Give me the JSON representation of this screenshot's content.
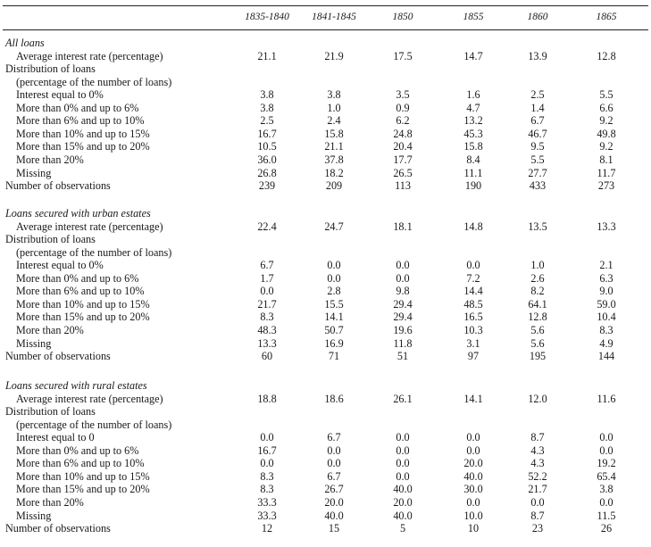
{
  "table": {
    "columns": [
      "1835-1840",
      "1841-1845",
      "1850",
      "1855",
      "1860",
      "1865"
    ],
    "sections": [
      {
        "title": "All loans",
        "rows": [
          {
            "label": "Average interest rate (percentage)",
            "indent": 1,
            "values": [
              "21.1",
              "21.9",
              "17.5",
              "14.7",
              "13.9",
              "12.8"
            ]
          },
          {
            "label": "Distribution of loans",
            "indent": 0,
            "values": []
          },
          {
            "label": "(percentage of the number of loans)",
            "indent": 1,
            "values": []
          },
          {
            "label": "Interest equal to 0%",
            "indent": 1,
            "values": [
              "3.8",
              "3.8",
              "3.5",
              "1.6",
              "2.5",
              "5.5"
            ]
          },
          {
            "label": "More than 0% and up to 6%",
            "indent": 1,
            "values": [
              "3.8",
              "1.0",
              "0.9",
              "4.7",
              "1.4",
              "6.6"
            ]
          },
          {
            "label": "More than 6% and up to 10%",
            "indent": 1,
            "values": [
              "2.5",
              "2.4",
              "6.2",
              "13.2",
              "6.7",
              "9.2"
            ]
          },
          {
            "label": "More than 10% and up to 15%",
            "indent": 1,
            "values": [
              "16.7",
              "15.8",
              "24.8",
              "45.3",
              "46.7",
              "49.8"
            ]
          },
          {
            "label": "More than 15% and up to 20%",
            "indent": 1,
            "values": [
              "10.5",
              "21.1",
              "20.4",
              "15.8",
              "9.5",
              "9.2"
            ]
          },
          {
            "label": "More than 20%",
            "indent": 1,
            "values": [
              "36.0",
              "37.8",
              "17.7",
              "8.4",
              "5.5",
              "8.1"
            ]
          },
          {
            "label": "Missing",
            "indent": 1,
            "values": [
              "26.8",
              "18.2",
              "26.5",
              "11.1",
              "27.7",
              "11.7"
            ]
          },
          {
            "label": "Number of observations",
            "indent": 0,
            "values": [
              "239",
              "209",
              "113",
              "190",
              "433",
              "273"
            ]
          }
        ]
      },
      {
        "title": "Loans secured with urban estates",
        "rows": [
          {
            "label": "Average interest rate (percentage)",
            "indent": 1,
            "values": [
              "22.4",
              "24.7",
              "18.1",
              "14.8",
              "13.5",
              "13.3"
            ]
          },
          {
            "label": "Distribution of loans",
            "indent": 0,
            "values": []
          },
          {
            "label": "(percentage of the number of loans)",
            "indent": 1,
            "values": []
          },
          {
            "label": "Interest equal to 0%",
            "indent": 1,
            "values": [
              "6.7",
              "0.0",
              "0.0",
              "0.0",
              "1.0",
              "2.1"
            ]
          },
          {
            "label": "More than 0% and up to 6%",
            "indent": 1,
            "values": [
              "1.7",
              "0.0",
              "0.0",
              "7.2",
              "2.6",
              "6.3"
            ]
          },
          {
            "label": "More than 6% and up to 10%",
            "indent": 1,
            "values": [
              "0.0",
              "2.8",
              "9.8",
              "14.4",
              "8.2",
              "9.0"
            ]
          },
          {
            "label": "More than 10% and up to 15%",
            "indent": 1,
            "values": [
              "21.7",
              "15.5",
              "29.4",
              "48.5",
              "64.1",
              "59.0"
            ]
          },
          {
            "label": "More than 15% and up to 20%",
            "indent": 1,
            "values": [
              "8.3",
              "14.1",
              "29.4",
              "16.5",
              "12.8",
              "10.4"
            ]
          },
          {
            "label": "More than 20%",
            "indent": 1,
            "values": [
              "48.3",
              "50.7",
              "19.6",
              "10.3",
              "5.6",
              "8.3"
            ]
          },
          {
            "label": "Missing",
            "indent": 1,
            "values": [
              "13.3",
              "16.9",
              "11.8",
              "3.1",
              "5.6",
              "4.9"
            ]
          },
          {
            "label": "Number of observations",
            "indent": 0,
            "values": [
              "60",
              "71",
              "51",
              "97",
              "195",
              "144"
            ]
          }
        ]
      },
      {
        "title": "Loans secured with rural estates",
        "rows": [
          {
            "label": "Average interest rate (percentage)",
            "indent": 1,
            "values": [
              "18.8",
              "18.6",
              "26.1",
              "14.1",
              "12.0",
              "11.6"
            ]
          },
          {
            "label": "Distribution of loans",
            "indent": 0,
            "values": []
          },
          {
            "label": "(percentage of the number of loans)",
            "indent": 1,
            "values": []
          },
          {
            "label": "Interest equal to 0",
            "indent": 1,
            "values": [
              "0.0",
              "6.7",
              "0.0",
              "0.0",
              "8.7",
              "0.0"
            ]
          },
          {
            "label": "More than 0% and up to 6%",
            "indent": 1,
            "values": [
              "16.7",
              "0.0",
              "0.0",
              "0.0",
              "4.3",
              "0.0"
            ]
          },
          {
            "label": "More than 6% and up to 10%",
            "indent": 1,
            "values": [
              "0.0",
              "0.0",
              "0.0",
              "20.0",
              "4.3",
              "19.2"
            ]
          },
          {
            "label": "More than 10% and up to 15%",
            "indent": 1,
            "values": [
              "8.3",
              "6.7",
              "0.0",
              "40.0",
              "52.2",
              "65.4"
            ]
          },
          {
            "label": "More than 15% and up to 20%",
            "indent": 1,
            "values": [
              "8.3",
              "26.7",
              "40.0",
              "30.0",
              "21.7",
              "3.8"
            ]
          },
          {
            "label": "More than 20%",
            "indent": 1,
            "values": [
              "33.3",
              "20.0",
              "20.0",
              "0.0",
              "0.0",
              "0.0"
            ]
          },
          {
            "label": "Missing",
            "indent": 1,
            "values": [
              "33.3",
              "40.0",
              "40.0",
              "10.0",
              "8.7",
              "11.5"
            ]
          },
          {
            "label": "Number of observations",
            "indent": 0,
            "values": [
              "12",
              "15",
              "5",
              "10",
              "23",
              "26"
            ]
          }
        ]
      }
    ]
  }
}
